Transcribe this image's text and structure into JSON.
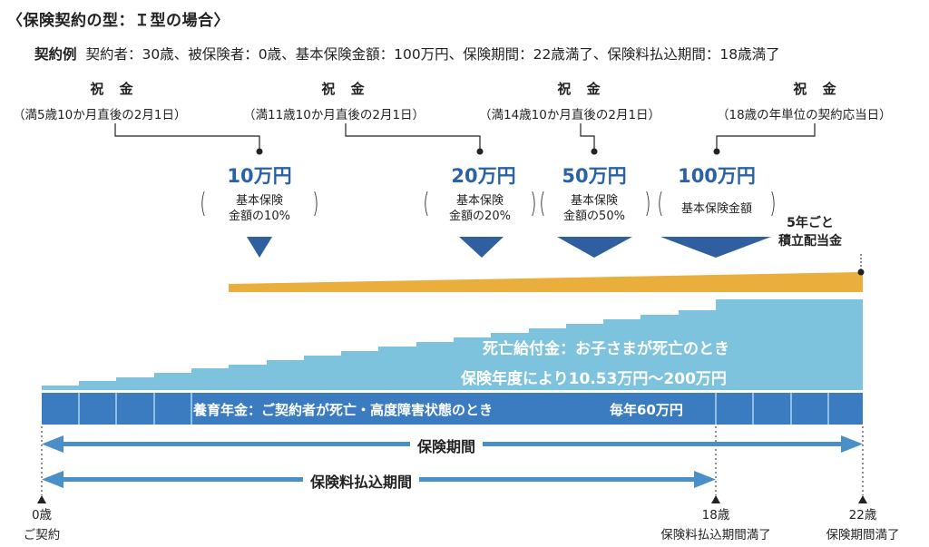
{
  "title": "〈保険契約の型：Ｉ型の場合〉",
  "example": {
    "label": "契約例",
    "text": "契約者：30歳、被保険者：0歳、基本保険金額：100万円、保険期間：22歳満了、保険料払込期間：18歳満了"
  },
  "celebrations": [
    {
      "heading": "祝 金",
      "timing": "（満5歳10か月直後の2月1日）",
      "amount": "10万円",
      "note_line1": "基本保険",
      "note_line2": "金額の10%"
    },
    {
      "heading": "祝 金",
      "timing": "（満11歳10か月直後の2月1日）",
      "amount": "20万円",
      "note_line1": "基本保険",
      "note_line2": "金額の20%"
    },
    {
      "heading": "祝 金",
      "timing": "（満14歳10か月直後の2月1日）",
      "amount": "50万円",
      "note_line1": "基本保険",
      "note_line2": "金額の50%"
    },
    {
      "heading": "祝 金",
      "timing": "（18歳の年単位の契約応当日）",
      "amount": "100万円",
      "note_line1": "基本保険金額",
      "note_line2": ""
    }
  ],
  "dividend": {
    "line1": "5年ごと",
    "line2": "積立配当金"
  },
  "death_benefit": {
    "line1": "死亡給付金：お子さまが死亡のとき",
    "line2": "保険年度により10.53万円～200万円"
  },
  "annuity": {
    "text": "養育年金：ご契約者が死亡・高度障害状態のとき",
    "amount": "毎年60万円"
  },
  "periods": {
    "insurance": "保険期間",
    "premium": "保険料払込期間"
  },
  "timeline": {
    "start_age": "0歳",
    "start_label": "ご契約",
    "mid_age": "18歳",
    "mid_label": "保険料払込期間満了",
    "end_age": "22歳",
    "end_label": "保険期間満了"
  },
  "colors": {
    "orange": "#e9ae3c",
    "light_blue": "#7ec3dd",
    "dark_blue": "#3a7cbf",
    "amount_blue": "#2a62a8",
    "marker_blue": "#2f5f9e",
    "arrow_blue": "#4a8fc8"
  }
}
